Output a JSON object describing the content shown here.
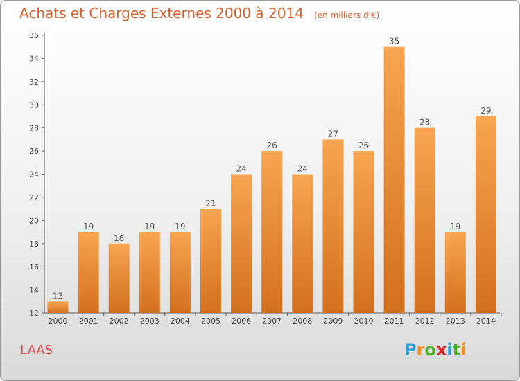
{
  "header": {
    "title": "Achats et Charges Externes 2000 à 2014",
    "unit": "(en milliers d'€)"
  },
  "location": "LAAS",
  "brand": {
    "letters": [
      "P",
      "r",
      "o",
      "x",
      "i",
      "t",
      "i"
    ],
    "colors": [
      "#2a9ed8",
      "#f08c1e",
      "#4caf2a",
      "#d8272a",
      "#2a9ed8",
      "#4caf2a",
      "#f08c1e"
    ]
  },
  "chart_data": {
    "type": "bar",
    "title": "Achats et Charges Externes 2000 à 2014",
    "subtitle": "(en milliers d'€)",
    "categories": [
      "2000",
      "2001",
      "2002",
      "2003",
      "2004",
      "2005",
      "2006",
      "2007",
      "2008",
      "2009",
      "2010",
      "2011",
      "2012",
      "2013",
      "2014"
    ],
    "values": [
      13,
      19,
      18,
      19,
      19,
      21,
      24,
      26,
      24,
      27,
      26,
      35,
      28,
      19,
      29
    ],
    "ylim": [
      12,
      36
    ],
    "yticks": [
      12,
      14,
      16,
      18,
      20,
      22,
      24,
      26,
      28,
      30,
      32,
      34,
      36
    ],
    "grid": false,
    "bar_color_top": "#f7a551",
    "bar_color_bottom": "#d2701f",
    "label_color": "#555555"
  }
}
